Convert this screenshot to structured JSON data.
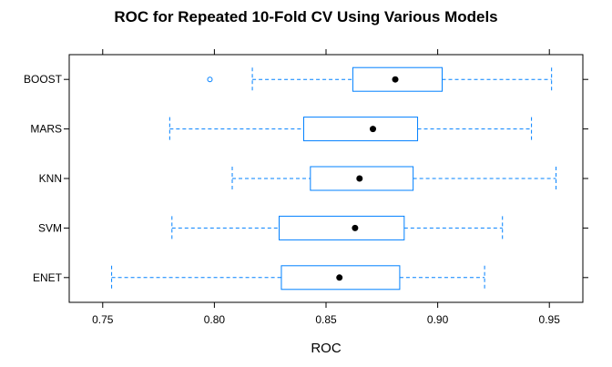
{
  "chart_data": {
    "type": "boxplot",
    "title": "ROC for Repeated 10-Fold CV Using Various Models",
    "xlabel": "ROC",
    "ylabel": "",
    "xlim": [
      0.735,
      0.965
    ],
    "x_ticks": [
      0.75,
      0.8,
      0.85,
      0.9,
      0.95
    ],
    "x_tick_labels": [
      "0.75",
      "0.80",
      "0.85",
      "0.90",
      "0.95"
    ],
    "grid": false,
    "colors": {
      "box": "#0080ff",
      "median": "#000000",
      "frame": "#000000"
    },
    "categories": [
      "BOOST",
      "MARS",
      "KNN",
      "SVM",
      "ENET"
    ],
    "series": [
      {
        "model": "BOOST",
        "min": 0.817,
        "q1": 0.862,
        "median": 0.881,
        "q3": 0.902,
        "max": 0.951,
        "outliers": [
          0.798
        ]
      },
      {
        "model": "MARS",
        "min": 0.78,
        "q1": 0.84,
        "median": 0.871,
        "q3": 0.891,
        "max": 0.942,
        "outliers": []
      },
      {
        "model": "KNN",
        "min": 0.808,
        "q1": 0.843,
        "median": 0.865,
        "q3": 0.889,
        "max": 0.953,
        "outliers": []
      },
      {
        "model": "SVM",
        "min": 0.781,
        "q1": 0.829,
        "median": 0.863,
        "q3": 0.885,
        "max": 0.929,
        "outliers": []
      },
      {
        "model": "ENET",
        "min": 0.754,
        "q1": 0.83,
        "median": 0.856,
        "q3": 0.883,
        "max": 0.921,
        "outliers": []
      }
    ]
  }
}
